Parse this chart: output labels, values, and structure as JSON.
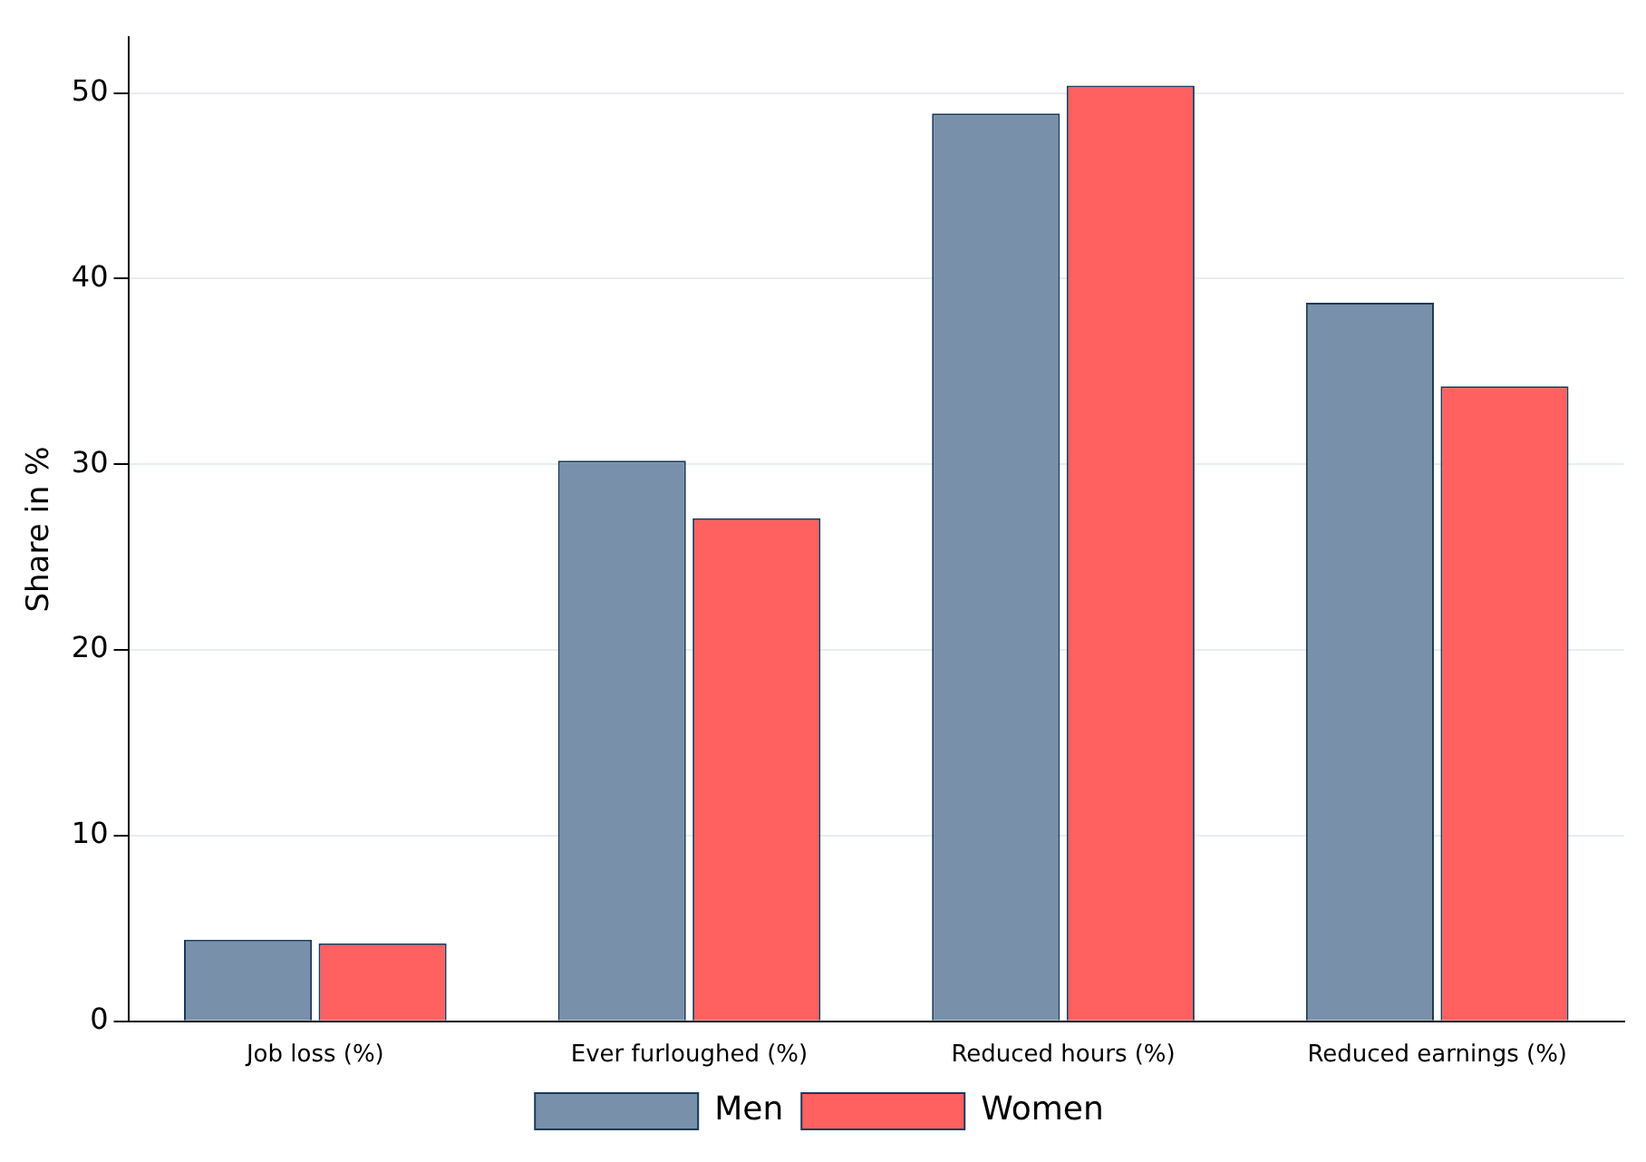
{
  "chart_data": {
    "type": "bar",
    "ylabel": "Share in %",
    "categories": [
      "Job loss (%)",
      "Ever furloughed (%)",
      "Reduced hours (%)",
      "Reduced earnings (%)"
    ],
    "series": [
      {
        "name": "Men",
        "color": "#7890aa",
        "values": [
          4.4,
          30.2,
          48.9,
          38.7
        ]
      },
      {
        "name": "Women",
        "color": "#ff6060",
        "values": [
          4.2,
          27.1,
          50.4,
          34.2
        ]
      }
    ],
    "ylim": [
      0,
      53
    ],
    "yticks": [
      0,
      10,
      20,
      30,
      40,
      50
    ],
    "grid": "y",
    "legend": "bottom"
  }
}
